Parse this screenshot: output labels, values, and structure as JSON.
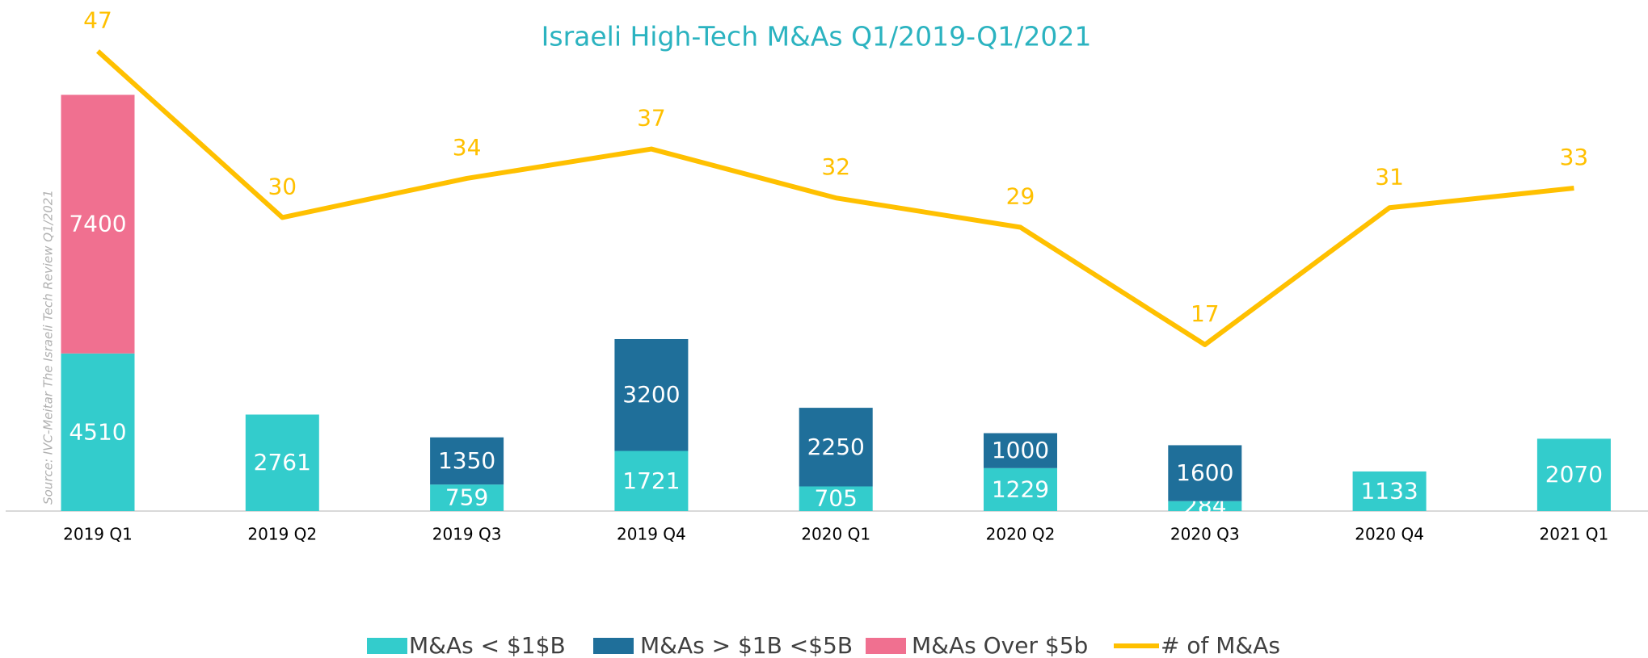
{
  "chart_data": {
    "type": "bar",
    "title": "Israeli High-Tech M&As Q1/2019-Q1/2021",
    "source": "Source: IVC-Meitar The Israeli Tech Review Q1/2021",
    "categories": [
      "2019 Q1",
      "2019 Q2",
      "2019 Q3",
      "2019 Q4",
      "2020 Q1",
      "2020 Q2",
      "2020 Q3",
      "2020 Q4",
      "2021 Q1"
    ],
    "series": [
      {
        "name": "M&As < $1$B",
        "color": "#33cccc",
        "values": [
          4510,
          2761,
          759,
          1721,
          705,
          1229,
          284,
          1133,
          2070
        ]
      },
      {
        "name": "M&As > $1B <$5B",
        "color": "#1f6f9a",
        "values": [
          null,
          null,
          1350,
          3200,
          2250,
          1000,
          1600,
          null,
          null
        ]
      },
      {
        "name": "M&As Over $5b",
        "color": "#f07090",
        "values": [
          7400,
          null,
          null,
          null,
          null,
          null,
          null,
          null,
          null
        ]
      },
      {
        "name": "# of M&As",
        "color": "#ffc000",
        "type": "line",
        "axis": "y2",
        "values": [
          47,
          30,
          34,
          37,
          32,
          29,
          17,
          31,
          33
        ]
      }
    ],
    "ylim": [
      0,
      14000
    ],
    "y2lim": [
      0,
      50
    ],
    "legend": "bottom"
  }
}
